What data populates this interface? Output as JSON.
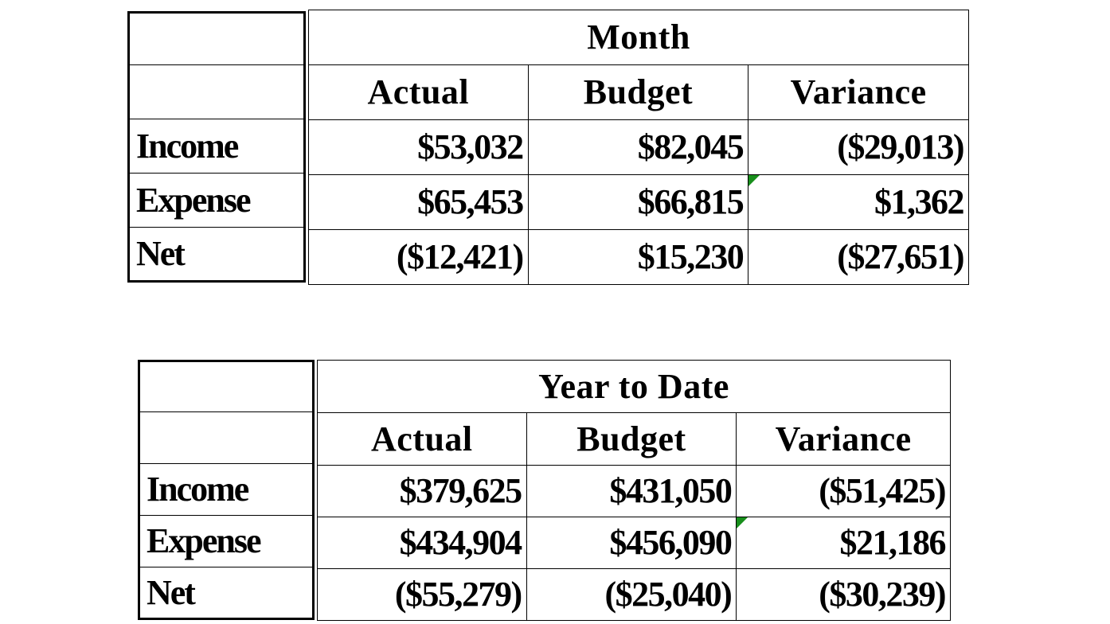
{
  "tables": [
    {
      "title": "Month",
      "columns": [
        "Actual",
        "Budget",
        "Variance"
      ],
      "rows": [
        {
          "label": "Income",
          "values": [
            "$53,032",
            "$82,045",
            "($29,013)"
          ]
        },
        {
          "label": "Expense",
          "values": [
            "$65,453",
            "$66,815",
            "$1,362"
          ]
        },
        {
          "label": "Net",
          "values": [
            "($12,421)",
            "$15,230",
            "($27,651)"
          ]
        }
      ]
    },
    {
      "title": "Year to Date",
      "columns": [
        "Actual",
        "Budget",
        "Variance"
      ],
      "rows": [
        {
          "label": "Income",
          "values": [
            "$379,625",
            "$431,050",
            "($51,425)"
          ]
        },
        {
          "label": "Expense",
          "values": [
            "$434,904",
            "$456,090",
            "$21,186"
          ]
        },
        {
          "label": "Net",
          "values": [
            "($55,279)",
            "($25,040)",
            "($30,239)"
          ]
        }
      ]
    }
  ],
  "colors": {
    "cell_flag": "#188f1c",
    "border": "#000000",
    "background": "#ffffff"
  }
}
